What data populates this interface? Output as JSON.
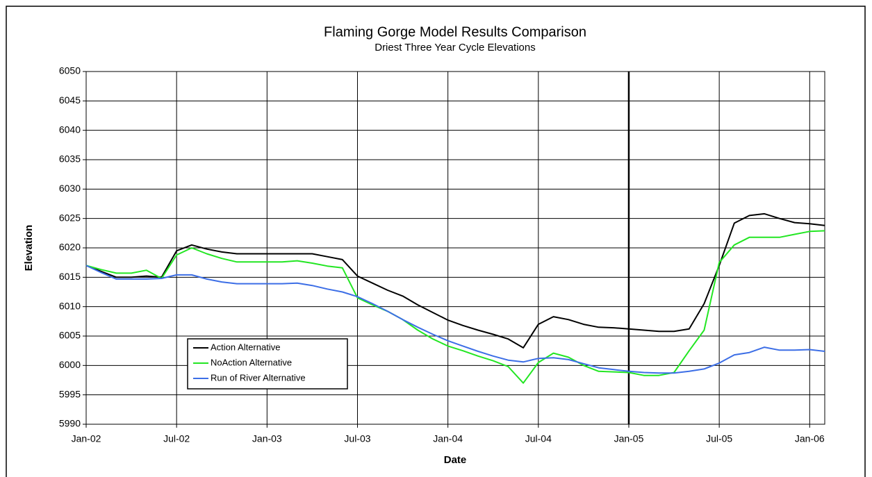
{
  "chart_data": {
    "type": "line",
    "title": "Flaming Gorge Model Results Comparison",
    "subtitle": "Driest Three Year Cycle Elevations",
    "x_label": "Date",
    "y_label": "Elevation",
    "x": [
      "2002-01",
      "2002-02",
      "2002-03",
      "2002-04",
      "2002-05",
      "2002-06",
      "2002-07",
      "2002-08",
      "2002-09",
      "2002-10",
      "2002-11",
      "2002-12",
      "2003-01",
      "2003-02",
      "2003-03",
      "2003-04",
      "2003-05",
      "2003-06",
      "2003-07",
      "2003-08",
      "2003-09",
      "2003-10",
      "2003-11",
      "2003-12",
      "2004-01",
      "2004-02",
      "2004-03",
      "2004-04",
      "2004-05",
      "2004-06",
      "2004-07",
      "2004-08",
      "2004-09",
      "2004-10",
      "2004-11",
      "2004-12",
      "2005-01",
      "2005-02",
      "2005-03",
      "2005-04",
      "2005-05",
      "2005-06",
      "2005-07",
      "2005-08",
      "2005-09",
      "2005-10",
      "2005-11",
      "2005-12",
      "2006-01",
      "2006-02"
    ],
    "series": [
      {
        "name": "Action Alternative",
        "color": "#000000",
        "values": [
          6017,
          6016,
          6015,
          6015,
          6015.2,
          6015,
          6019.5,
          6020.5,
          6019.8,
          6019.3,
          6019,
          6019,
          6019,
          6019,
          6019,
          6019,
          6018.5,
          6018,
          6015.2,
          6014,
          6012.8,
          6011.8,
          6010.3,
          6009,
          6007.7,
          6006.8,
          6006,
          6005.3,
          6004.5,
          6003,
          6007,
          6008.3,
          6007.8,
          6007,
          6006.5,
          6006.4,
          6006.2,
          6006,
          6005.8,
          6005.8,
          6006.2,
          6010.5,
          6017,
          6024.2,
          6025.5,
          6025.8,
          6025,
          6024.3,
          6024.1,
          6023.8
        ]
      },
      {
        "name": "NoAction Alternative",
        "color": "#22e622",
        "values": [
          6017,
          6016.3,
          6015.7,
          6015.7,
          6016.2,
          6014.8,
          6018.8,
          6020,
          6019,
          6018.2,
          6017.6,
          6017.6,
          6017.6,
          6017.6,
          6017.8,
          6017.4,
          6016.9,
          6016.6,
          6011.5,
          6010.3,
          6009.2,
          6007.8,
          6006,
          6004.5,
          6003.3,
          6002.5,
          6001.6,
          6000.8,
          5999.8,
          5997,
          6000.5,
          6002.1,
          6001.4,
          6000,
          5999,
          5998.9,
          5998.8,
          5998.3,
          5998.3,
          5998.8,
          6002.5,
          6006,
          6017.5,
          6020.5,
          6021.8,
          6021.8,
          6021.8,
          6022.3,
          6022.8,
          6022.9
        ]
      },
      {
        "name": "Run of River Alternative",
        "color": "#3c6ee6",
        "values": [
          6017,
          6015.8,
          6014.7,
          6014.7,
          6014.7,
          6014.8,
          6015.4,
          6015.4,
          6014.7,
          6014.2,
          6013.9,
          6013.9,
          6013.9,
          6013.9,
          6014,
          6013.6,
          6013,
          6012.5,
          6011.7,
          6010.5,
          6009.2,
          6007.8,
          6006.5,
          6005.3,
          6004.2,
          6003.3,
          6002.4,
          6001.6,
          6000.9,
          6000.6,
          6001.2,
          6001.3,
          6001,
          6000.3,
          5999.6,
          5999.3,
          5999,
          5998.8,
          5998.7,
          5998.7,
          5999,
          5999.4,
          6000.4,
          6001.8,
          6002.2,
          6003.1,
          6002.6,
          6002.6,
          6002.7,
          6002.4
        ]
      }
    ],
    "xlim": [
      "2002-01",
      "2006-02"
    ],
    "xticks": [
      {
        "value": "2002-01",
        "label": "Jan-02"
      },
      {
        "value": "2002-07",
        "label": "Jul-02"
      },
      {
        "value": "2003-01",
        "label": "Jan-03"
      },
      {
        "value": "2003-07",
        "label": "Jul-03"
      },
      {
        "value": "2004-01",
        "label": "Jan-04"
      },
      {
        "value": "2004-07",
        "label": "Jul-04"
      },
      {
        "value": "2005-01",
        "label": "Jan-05"
      },
      {
        "value": "2005-07",
        "label": "Jul-05"
      },
      {
        "value": "2006-01",
        "label": "Jan-06"
      }
    ],
    "ylim": [
      5990,
      6050
    ],
    "yticks": [
      5990,
      5995,
      6000,
      6005,
      6010,
      6015,
      6020,
      6025,
      6030,
      6035,
      6040,
      6045,
      6050
    ],
    "grid": true,
    "vline": "2005-01",
    "legend": "lower left"
  }
}
